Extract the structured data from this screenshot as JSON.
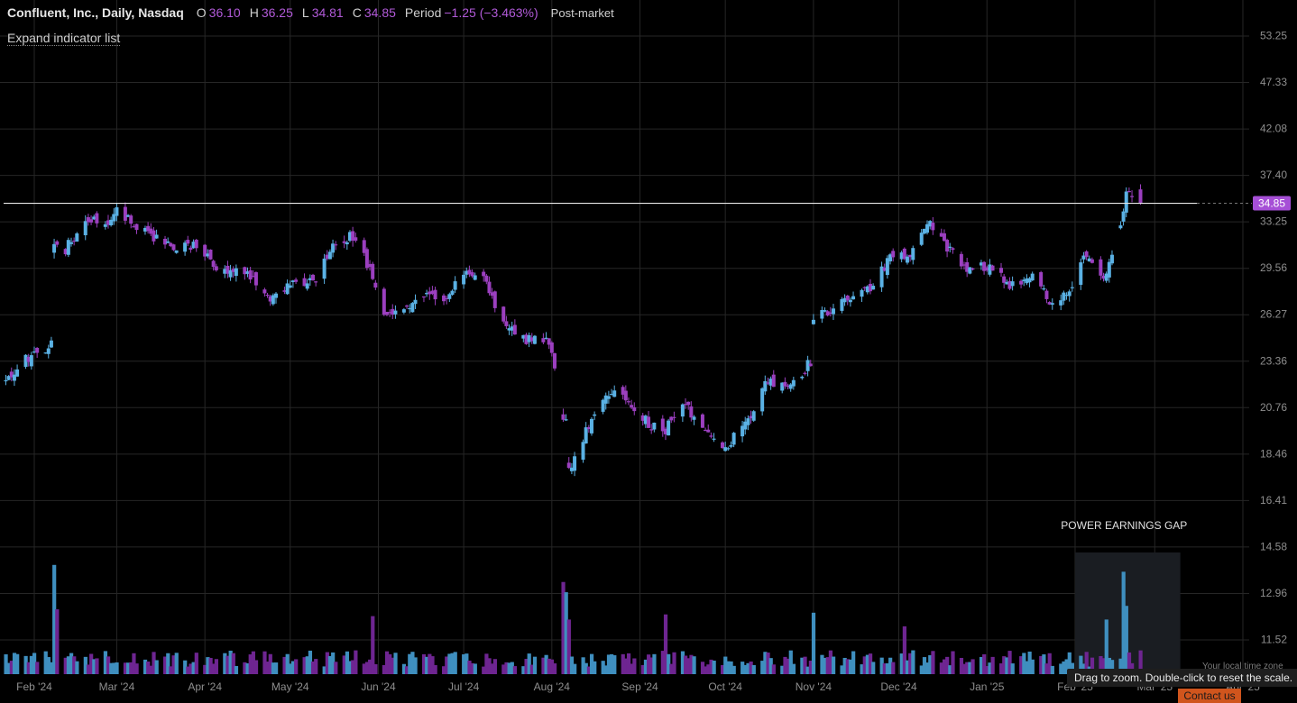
{
  "header": {
    "title": "Confluent, Inc., Daily, Nasdaq",
    "open_label": "O",
    "open": "36.10",
    "high_label": "H",
    "high": "36.25",
    "low_label": "L",
    "low": "34.81",
    "close_label": "C",
    "close": "34.85",
    "period_label": "Period",
    "period": "−1.25 (−3.463%)",
    "session": "Post-market"
  },
  "expand_indicator": "Expand indicator list",
  "tooltip": "Drag to zoom. Double-click to reset the scale.",
  "timezone_label": "Your local time zone",
  "contact_label": "Contact us",
  "colors": {
    "up": "#5ab1e4",
    "down": "#9b3fbf",
    "price_badge": "#a64fd6",
    "volume_up": "#3f8fbf",
    "volume_down": "#6e2591"
  },
  "chart_data": {
    "type": "candlestick",
    "y_scale": "log",
    "price_ticks": [
      "53.25",
      "47.33",
      "42.08",
      "37.40",
      "33.25",
      "29.56",
      "26.27",
      "23.36",
      "20.76",
      "18.46",
      "16.41",
      "14.58",
      "12.96",
      "11.52"
    ],
    "x_ticks": [
      "Feb '24",
      "Mar '24",
      "Apr '24",
      "May '24",
      "Jun '24",
      "Jul '24",
      "Aug '24",
      "Sep '24",
      "Oct '24",
      "Nov '24",
      "Dec '24",
      "Jan '25",
      "Feb '25",
      "Mar '25",
      "Apr '25"
    ],
    "last_price": "34.85",
    "annotation": {
      "text": "POWER EARNINGS GAP"
    },
    "close_path": [
      [
        "2024-01-22",
        22.2
      ],
      [
        "2024-01-30",
        23.6
      ],
      [
        "2024-02-07",
        24.4
      ],
      [
        "2024-02-08",
        31.8
      ],
      [
        "2024-02-12",
        31.0
      ],
      [
        "2024-02-20",
        33.6
      ],
      [
        "2024-02-28",
        33.4
      ],
      [
        "2024-03-01",
        34.3
      ],
      [
        "2024-03-12",
        32.3
      ],
      [
        "2024-03-20",
        31.2
      ],
      [
        "2024-03-28",
        31.4
      ],
      [
        "2024-04-05",
        29.6
      ],
      [
        "2024-04-15",
        29.4
      ],
      [
        "2024-04-25",
        27.3
      ],
      [
        "2024-05-02",
        28.4
      ],
      [
        "2024-05-10",
        28.7
      ],
      [
        "2024-05-17",
        31.7
      ],
      [
        "2024-05-24",
        32.1
      ],
      [
        "2024-06-03",
        26.5
      ],
      [
        "2024-06-10",
        26.4
      ],
      [
        "2024-06-17",
        27.6
      ],
      [
        "2024-06-24",
        27.3
      ],
      [
        "2024-07-01",
        29.4
      ],
      [
        "2024-07-08",
        28.8
      ],
      [
        "2024-07-15",
        25.6
      ],
      [
        "2024-07-24",
        24.6
      ],
      [
        "2024-07-31",
        24.5
      ],
      [
        "2024-08-05",
        19.9
      ],
      [
        "2024-08-08",
        17.9
      ],
      [
        "2024-08-13",
        19.6
      ],
      [
        "2024-08-20",
        21.7
      ],
      [
        "2024-08-27",
        21.2
      ],
      [
        "2024-09-03",
        20.1
      ],
      [
        "2024-09-09",
        19.4
      ],
      [
        "2024-09-16",
        20.9
      ],
      [
        "2024-09-23",
        19.9
      ],
      [
        "2024-10-01",
        18.8
      ],
      [
        "2024-10-08",
        19.9
      ],
      [
        "2024-10-16",
        22.2
      ],
      [
        "2024-10-24",
        22.0
      ],
      [
        "2024-10-31",
        23.3
      ],
      [
        "2024-11-01",
        26.2
      ],
      [
        "2024-11-08",
        26.7
      ],
      [
        "2024-11-15",
        27.6
      ],
      [
        "2024-11-22",
        28.3
      ],
      [
        "2024-11-29",
        30.8
      ],
      [
        "2024-12-05",
        30.2
      ],
      [
        "2024-12-11",
        33.2
      ],
      [
        "2024-12-18",
        31.1
      ],
      [
        "2024-12-26",
        29.5
      ],
      [
        "2025-01-03",
        29.7
      ],
      [
        "2025-01-10",
        28.2
      ],
      [
        "2025-01-17",
        29.3
      ],
      [
        "2025-01-24",
        26.9
      ],
      [
        "2025-01-31",
        28.3
      ],
      [
        "2025-02-05",
        30.8
      ],
      [
        "2025-02-10",
        28.8
      ],
      [
        "2025-02-14",
        30.3
      ],
      [
        "2025-02-18",
        34.0
      ],
      [
        "2025-02-20",
        36.1
      ],
      [
        "2025-02-24",
        34.85
      ]
    ],
    "volume_spikes_k": [
      [
        "2024-02-08",
        320
      ],
      [
        "2024-02-09",
        190
      ],
      [
        "2024-05-30",
        170
      ],
      [
        "2024-08-05",
        270
      ],
      [
        "2024-08-06",
        240
      ],
      [
        "2024-08-07",
        160
      ],
      [
        "2024-09-10",
        175
      ],
      [
        "2024-11-01",
        180
      ],
      [
        "2024-12-03",
        140
      ],
      [
        "2025-02-12",
        160
      ],
      [
        "2025-02-18",
        300
      ],
      [
        "2025-02-19",
        200
      ]
    ]
  }
}
